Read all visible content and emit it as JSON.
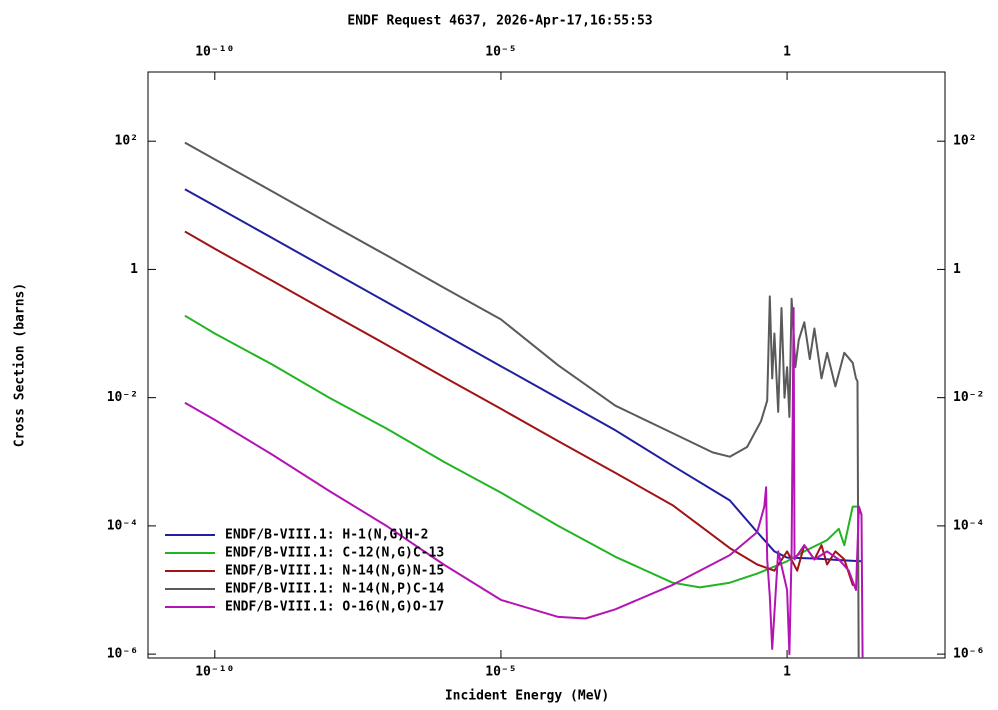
{
  "chart_data": {
    "type": "line",
    "title": "ENDF Request 4637, 2026-Apr-17,16:55:53",
    "x_label": "Incident Energy (MeV)",
    "y_label": "Cross Section (barns)",
    "xscale": "log",
    "yscale": "log",
    "xlim": [
      6.8e-12,
      575
    ],
    "ylim": [
      8.7e-07,
      1200
    ],
    "xticks": [
      {
        "value": 1e-10,
        "label": "10⁻¹⁰"
      },
      {
        "value": 1e-05,
        "label": "10⁻⁵"
      },
      1
    ],
    "yticks": [
      {
        "value": 1e-06,
        "label": "10⁻⁶"
      },
      {
        "value": 0.0001,
        "label": "10⁻⁴"
      },
      {
        "value": 0.01,
        "label": "10⁻²"
      },
      1,
      {
        "value": 100,
        "label": "10²"
      }
    ],
    "legend": "lower left",
    "series": [
      {
        "name": "ENDF/B-VIII.1: H-1(N,G)H-2",
        "color": "#1f1fa0",
        "x": [
          3e-11,
          1e-10,
          1e-09,
          1e-08,
          1e-07,
          1e-06,
          1e-05,
          0.0001,
          0.001,
          0.01,
          0.1,
          0.3,
          0.6,
          1,
          3,
          10,
          20
        ],
        "values": [
          17.8,
          9.8,
          3.1,
          0.98,
          0.31,
          0.098,
          0.031,
          0.0098,
          0.0031,
          0.00087,
          0.00025,
          8e-05,
          4e-05,
          3.2e-05,
          3.1e-05,
          2.9e-05,
          2.8e-05
        ]
      },
      {
        "name": "ENDF/B-VIII.1: C-12(N,G)C-13",
        "color": "#22b422",
        "x": [
          3e-11,
          1e-10,
          1e-09,
          1e-08,
          1e-07,
          1e-06,
          1e-05,
          0.0001,
          0.001,
          0.01,
          0.03,
          0.1,
          0.3,
          1,
          2,
          5,
          8,
          10,
          14,
          17,
          20
        ],
        "values": [
          0.19,
          0.1,
          0.033,
          0.01,
          0.0033,
          0.001,
          0.00033,
          0.0001,
          3.3e-05,
          1.3e-05,
          1.1e-05,
          1.3e-05,
          1.8e-05,
          2.8e-05,
          4e-05,
          6e-05,
          9e-05,
          5e-05,
          0.0002,
          0.0002,
          0.00015
        ]
      },
      {
        "name": "ENDF/B-VIII.1: N-14(N,G)N-15",
        "color": "#a01414",
        "x": [
          3e-11,
          1e-10,
          1e-09,
          1e-08,
          1e-07,
          1e-06,
          1e-05,
          0.0001,
          0.001,
          0.01,
          0.1,
          0.3,
          0.6,
          1,
          1.5,
          2,
          3,
          4,
          5,
          7,
          10,
          14,
          15
        ],
        "values": [
          3.9,
          2.1,
          0.67,
          0.21,
          0.067,
          0.021,
          0.0067,
          0.0021,
          0.00067,
          0.00021,
          4.5e-05,
          2.5e-05,
          2e-05,
          4e-05,
          2e-05,
          5e-05,
          3e-05,
          5e-05,
          2.5e-05,
          4e-05,
          3e-05,
          1.2e-05,
          1.2e-05
        ]
      },
      {
        "name": "ENDF/B-VIII.1: N-14(N,P)C-14",
        "color": "#5a5a5a",
        "x": [
          3e-11,
          1e-10,
          1e-09,
          1e-08,
          1e-07,
          1e-06,
          1e-05,
          0.0001,
          0.001,
          0.01,
          0.05,
          0.1,
          0.2,
          0.35,
          0.45,
          0.5,
          0.55,
          0.6,
          0.7,
          0.8,
          0.9,
          1.0,
          1.1,
          1.2,
          1.4,
          1.6,
          2,
          2.5,
          3,
          4,
          5,
          7,
          10,
          14,
          16,
          17,
          18
        ],
        "values": [
          95,
          52,
          16.6,
          5.2,
          1.66,
          0.52,
          0.166,
          0.032,
          0.0075,
          0.0028,
          0.0014,
          0.0012,
          0.0017,
          0.0043,
          0.009,
          0.38,
          0.02,
          0.1,
          0.006,
          0.25,
          0.01,
          0.03,
          0.005,
          0.35,
          0.03,
          0.08,
          0.15,
          0.04,
          0.12,
          0.02,
          0.05,
          0.015,
          0.05,
          0.035,
          0.02,
          0.018,
          1e-07
        ]
      },
      {
        "name": "ENDF/B-VIII.1: O-16(N,G)O-17",
        "color": "#b414b4",
        "x": [
          3e-11,
          1e-10,
          1e-09,
          1e-08,
          1e-07,
          1e-06,
          1e-05,
          0.0001,
          0.0003,
          0.001,
          0.01,
          0.1,
          0.3,
          0.4,
          0.43,
          0.45,
          0.5,
          0.55,
          0.7,
          1,
          1.1,
          1.2,
          1.3,
          1.35,
          2,
          3,
          5,
          8,
          12,
          16,
          18,
          20,
          21
        ],
        "values": [
          0.0083,
          0.0045,
          0.0013,
          0.00035,
          0.0001,
          2.5e-05,
          7e-06,
          3.8e-06,
          3.6e-06,
          5e-06,
          1.2e-05,
          3.5e-05,
          8e-05,
          0.0002,
          0.0004,
          3e-05,
          8e-06,
          1.2e-06,
          4e-05,
          1e-05,
          1e-06,
          4e-05,
          0.25,
          3e-05,
          5e-05,
          3e-05,
          4e-05,
          3e-05,
          2e-05,
          1e-05,
          0.0002,
          0.00015,
          5e-07
        ]
      }
    ]
  }
}
